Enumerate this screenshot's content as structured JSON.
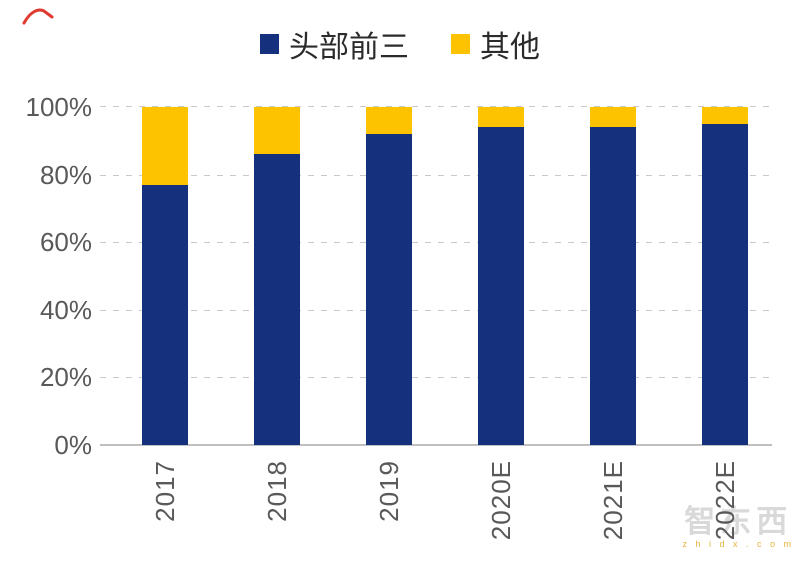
{
  "chart_data": {
    "type": "bar",
    "stacked": true,
    "title": "",
    "xlabel": "",
    "ylabel": "",
    "categories": [
      "2017",
      "2018",
      "2019",
      "2020E",
      "2021E",
      "2022E"
    ],
    "series": [
      {
        "name": "头部前三",
        "color": "#15317E",
        "values": [
          77,
          86,
          92,
          94,
          94,
          95
        ]
      },
      {
        "name": "其他",
        "color": "#FDC300",
        "values": [
          23,
          14,
          8,
          6,
          6,
          5
        ]
      }
    ],
    "unit": "%",
    "ylim": [
      0,
      100
    ],
    "yticks": [
      "100%",
      "80%",
      "60%",
      "40%",
      "20%",
      "0%"
    ],
    "grid": "horizontal-dashed",
    "legend_position": "top-center",
    "x_tick_rotation": -90
  },
  "colors": {
    "grid_line": "#C9C9C9",
    "axis_line": "#BFBFBF",
    "tick_text": "#595959",
    "background": "#FFFFFF",
    "red_mark": "#E0392F"
  },
  "watermark": {
    "logo_text": "智东西",
    "site_text": "z h i d x . c o m"
  }
}
